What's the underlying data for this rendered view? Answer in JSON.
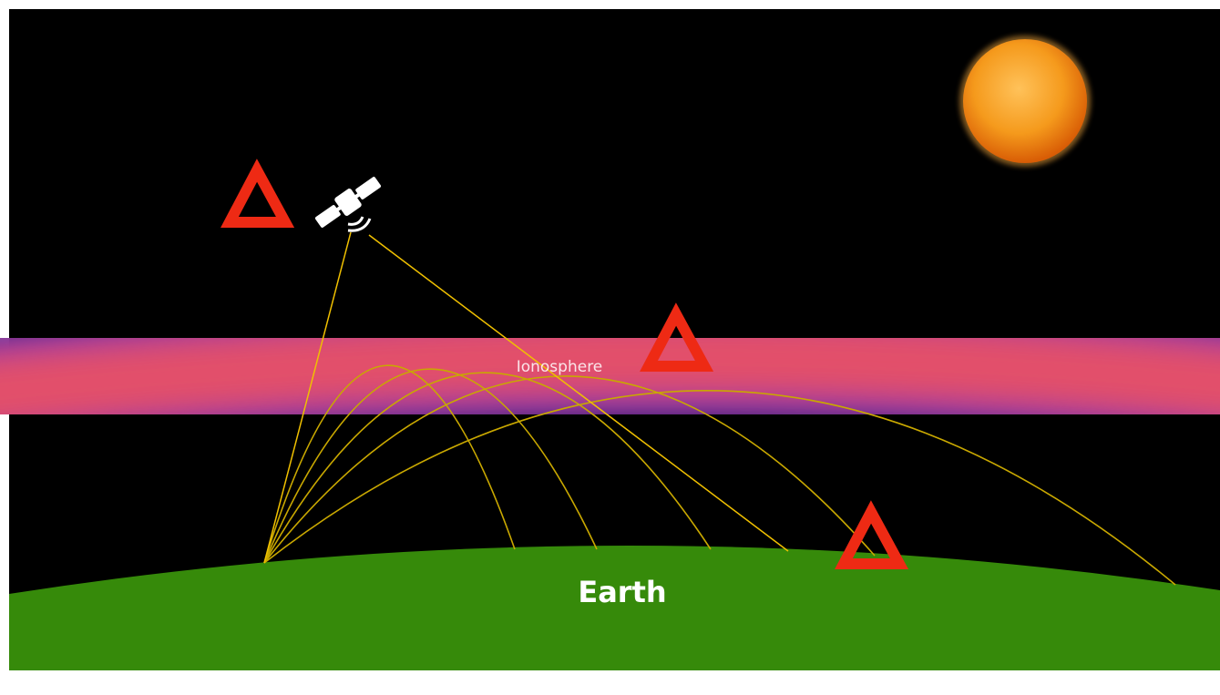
{
  "labels": {
    "ionosphere": "Ionosphere",
    "earth": "Earth"
  }
}
